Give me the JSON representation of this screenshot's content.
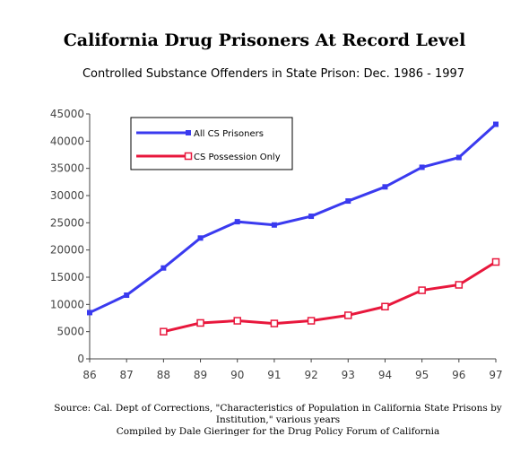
{
  "header": {
    "title": "California Drug Prisoners At Record Level",
    "subtitle": "Controlled Substance Offenders in State Prison:  Dec. 1986 - 1997"
  },
  "source": {
    "line1": "Source:  Cal. Dept of Corrections, \"Characteristics of Population in California State Prisons by",
    "line2": "Institution,\" various years",
    "line3": "Compiled by Dale Gieringer for the Drug Policy Forum of California"
  },
  "chart_data": {
    "type": "line",
    "title": "California Drug Prisoners At Record Level",
    "subtitle": "Controlled Substance Offenders in State Prison:  Dec. 1986 - 1997",
    "x": [
      "86",
      "87",
      "88",
      "89",
      "90",
      "91",
      "92",
      "93",
      "94",
      "95",
      "96",
      "97"
    ],
    "ylim": [
      0,
      45000
    ],
    "yticks": [
      0,
      5000,
      10000,
      15000,
      20000,
      25000,
      30000,
      35000,
      40000,
      45000
    ],
    "grid": false,
    "legend_position": "top-left",
    "series": [
      {
        "name": "All CS Prisoners",
        "color": "#3a3aef",
        "marker": "filled-square",
        "values": [
          8500,
          11700,
          16700,
          22200,
          25200,
          24600,
          26200,
          29000,
          31600,
          35200,
          37000,
          43100
        ]
      },
      {
        "name": "CS Possession Only",
        "color": "#e8173c",
        "marker": "open-square",
        "values": [
          null,
          null,
          5000,
          6600,
          7000,
          6500,
          7000,
          8000,
          9600,
          12600,
          13600,
          17800
        ]
      }
    ]
  }
}
